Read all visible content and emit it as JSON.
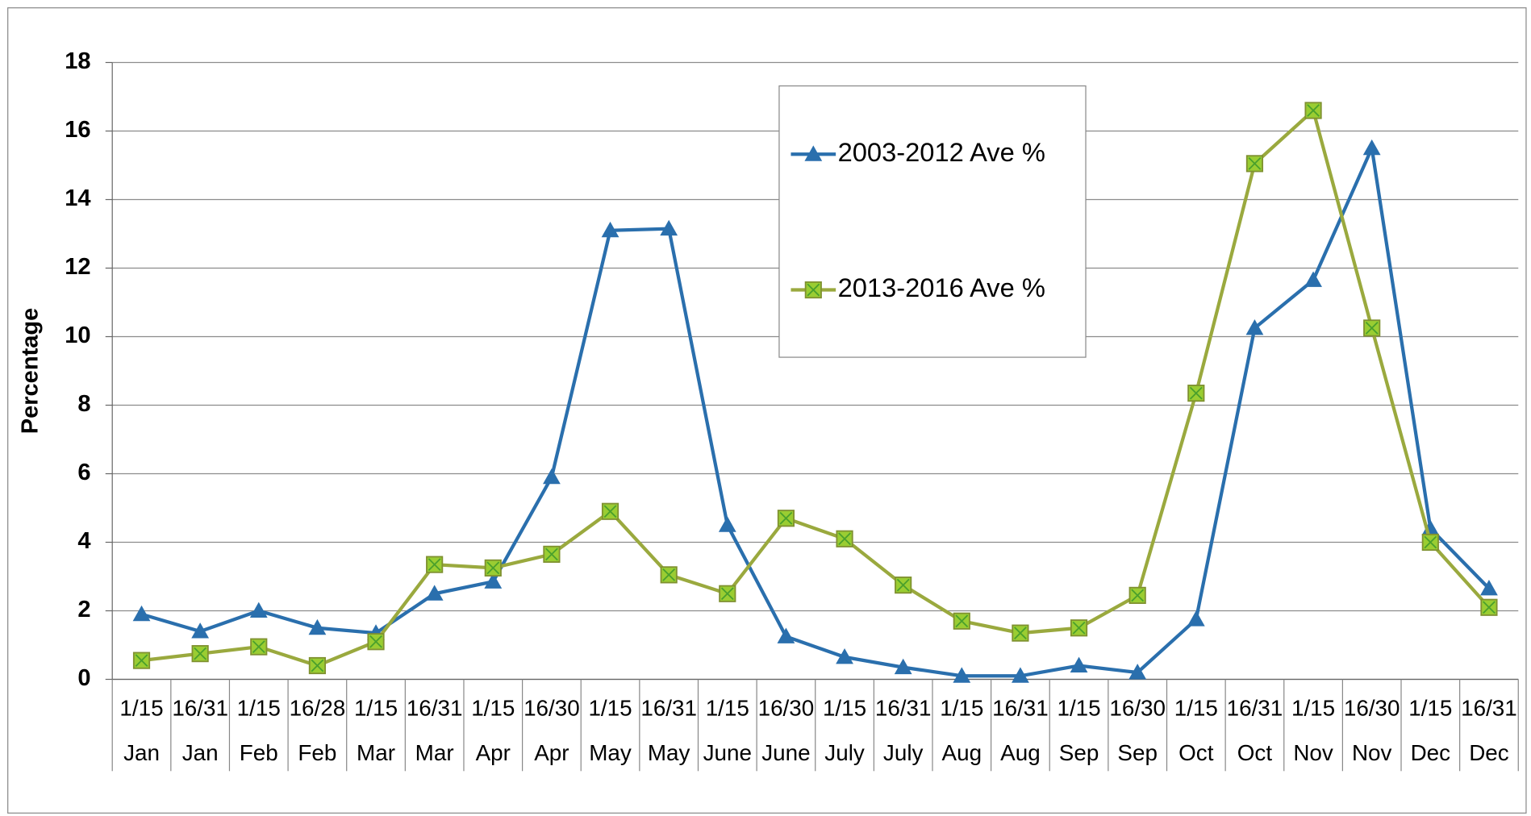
{
  "chart_data": {
    "type": "line",
    "y_label": "Percentage",
    "categories": [
      [
        "1/15",
        "Jan"
      ],
      [
        "16/31",
        "Jan"
      ],
      [
        "1/15",
        "Feb"
      ],
      [
        "16/28",
        "Feb"
      ],
      [
        "1/15",
        "Mar"
      ],
      [
        "16/31",
        "Mar"
      ],
      [
        "1/15",
        "Apr"
      ],
      [
        "16/30",
        "Apr"
      ],
      [
        "1/15",
        "May"
      ],
      [
        "16/31",
        "May"
      ],
      [
        "1/15",
        "June"
      ],
      [
        "16/30",
        "June"
      ],
      [
        "1/15",
        "July"
      ],
      [
        "16/31",
        "July"
      ],
      [
        "1/15",
        "Aug"
      ],
      [
        "16/31",
        "Aug"
      ],
      [
        "1/15",
        "Sep"
      ],
      [
        "16/30",
        "Sep"
      ],
      [
        "1/15",
        "Oct"
      ],
      [
        "16/31",
        "Oct"
      ],
      [
        "1/15",
        "Nov"
      ],
      [
        "16/30",
        "Nov"
      ],
      [
        "1/15",
        "Dec"
      ],
      [
        "16/31",
        "Dec"
      ]
    ],
    "series": [
      {
        "name": "2003-2012 Ave %",
        "color": "#2a6fad",
        "marker": "triangle",
        "values": [
          1.9,
          1.4,
          2.0,
          1.5,
          1.35,
          2.5,
          2.85,
          5.9,
          13.1,
          13.15,
          4.5,
          1.25,
          0.65,
          0.35,
          0.1,
          0.1,
          0.4,
          0.2,
          1.75,
          10.25,
          11.65,
          15.5,
          4.4,
          2.65
        ]
      },
      {
        "name": "2013-2016 Ave %",
        "color": "#9aa93e",
        "marker": "square",
        "values": [
          0.55,
          0.75,
          0.95,
          0.4,
          1.1,
          3.35,
          3.25,
          3.65,
          4.9,
          3.05,
          2.5,
          4.7,
          4.1,
          2.75,
          1.7,
          1.35,
          1.5,
          2.45,
          8.35,
          15.05,
          16.6,
          10.25,
          4.0,
          2.1
        ]
      }
    ],
    "ylim": [
      0,
      18
    ],
    "yticks": [
      0,
      2,
      4,
      6,
      8,
      10,
      12,
      14,
      16,
      18
    ],
    "grid": true,
    "legend": "top-right"
  }
}
